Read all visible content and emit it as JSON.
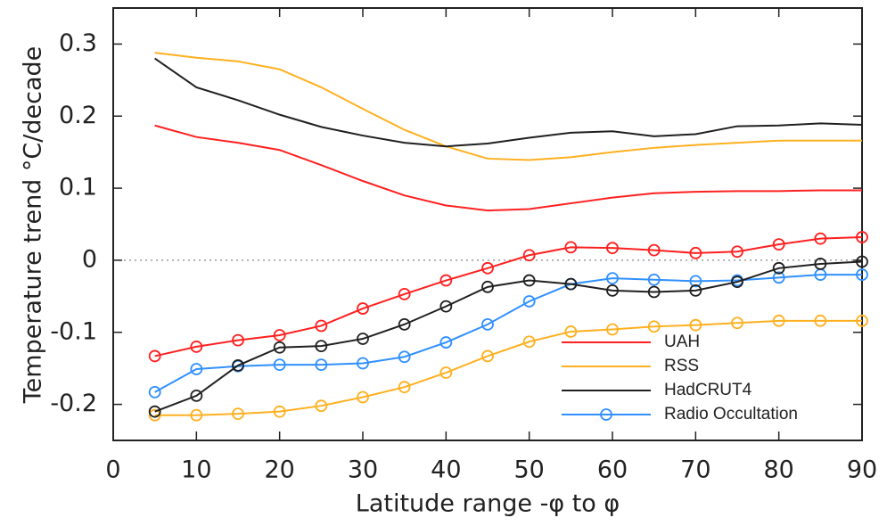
{
  "chart_data": {
    "type": "line",
    "xlabel": "Latitude range -φ to φ",
    "ylabel": "Temperature trend °C/decade",
    "x": [
      5,
      10,
      15,
      20,
      25,
      30,
      35,
      40,
      45,
      50,
      55,
      60,
      65,
      70,
      75,
      80,
      85,
      90
    ],
    "series": [
      {
        "name": "UAH",
        "color": "#ff2020",
        "values": [
          0.187,
          0.171,
          0.163,
          0.153,
          0.132,
          0.11,
          0.09,
          0.076,
          0.069,
          0.071,
          0.079,
          0.087,
          0.093,
          0.095,
          0.096,
          0.096,
          0.097,
          0.097
        ]
      },
      {
        "name": "RSS",
        "color": "#ffb020",
        "values": [
          0.288,
          0.281,
          0.276,
          0.265,
          0.24,
          0.21,
          0.181,
          0.158,
          0.141,
          0.139,
          0.143,
          0.15,
          0.156,
          0.16,
          0.163,
          0.166,
          0.166,
          0.166
        ]
      },
      {
        "name": "HadCRUT4",
        "color": "#202020",
        "values": [
          0.28,
          0.24,
          0.222,
          0.202,
          0.185,
          0.173,
          0.163,
          0.158,
          0.162,
          0.17,
          0.177,
          0.179,
          0.172,
          0.175,
          0.186,
          0.187,
          0.19,
          0.188
        ]
      },
      {
        "name": "Radio Occultation",
        "color": "#3090ff",
        "marker": "circle",
        "values": [
          -0.183,
          -0.151,
          -0.147,
          -0.145,
          -0.145,
          -0.143,
          -0.134,
          -0.114,
          -0.089,
          -0.057,
          -0.033,
          -0.025,
          -0.027,
          -0.029,
          -0.028,
          -0.024,
          -0.02,
          -0.02
        ]
      },
      {
        "color": "#ff2020",
        "marker": "circle",
        "values": [
          -0.133,
          -0.12,
          -0.111,
          -0.104,
          -0.091,
          -0.067,
          -0.047,
          -0.028,
          -0.011,
          0.007,
          0.018,
          0.017,
          0.014,
          0.01,
          0.012,
          0.022,
          0.03,
          0.032
        ]
      },
      {
        "color": "#ffb020",
        "marker": "circle",
        "values": [
          -0.215,
          -0.215,
          -0.213,
          -0.21,
          -0.202,
          -0.19,
          -0.176,
          -0.156,
          -0.133,
          -0.113,
          -0.099,
          -0.096,
          -0.092,
          -0.09,
          -0.087,
          -0.084,
          -0.084,
          -0.084
        ]
      },
      {
        "color": "#202020",
        "marker": "circle",
        "values": [
          -0.21,
          -0.188,
          -0.146,
          -0.121,
          -0.119,
          -0.109,
          -0.089,
          -0.064,
          -0.037,
          -0.028,
          -0.033,
          -0.042,
          -0.044,
          -0.042,
          -0.03,
          -0.011,
          -0.005,
          -0.002
        ]
      }
    ],
    "xlim": [
      0,
      90
    ],
    "xticks": [
      0,
      10,
      20,
      30,
      40,
      50,
      60,
      70,
      80,
      90
    ],
    "ylim": [
      -0.25,
      0.35
    ],
    "yticks": [
      -0.2,
      -0.1,
      0,
      0.1,
      0.2,
      0.3
    ],
    "zero_line": true,
    "legend": "lower right"
  }
}
